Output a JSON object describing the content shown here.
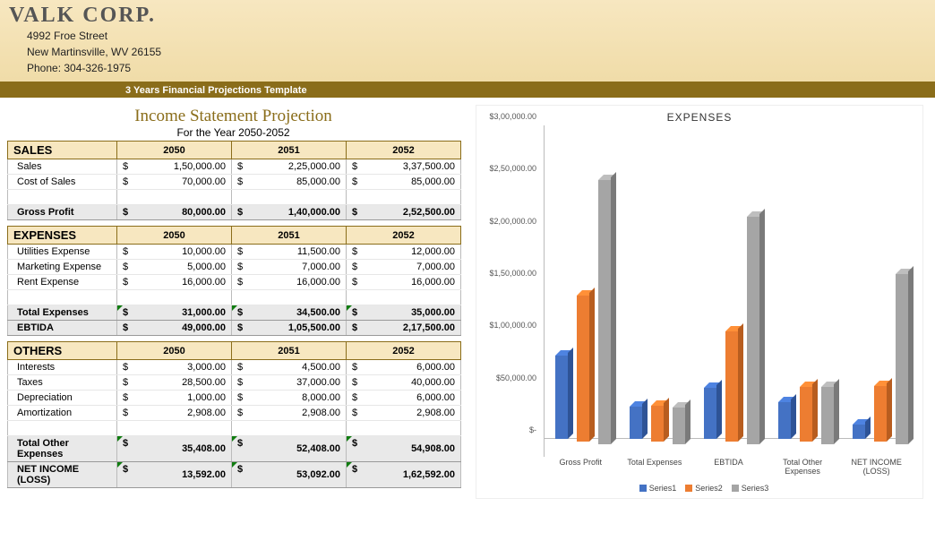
{
  "header": {
    "company": "VALK CORP.",
    "address1": "4992 Froe Street",
    "address2": "New Martinsville, WV 26155",
    "phone": "Phone: 304-326-1975",
    "strip": "3 Years Financial Projections Template"
  },
  "statement": {
    "title": "Income Statement Projection",
    "subtitle": "For the Year 2050-2052",
    "years": [
      "2050",
      "2051",
      "2052"
    ],
    "currency": "$",
    "sections": {
      "sales": {
        "label": "SALES",
        "rows": [
          {
            "label": "Sales",
            "vals": [
              "1,50,000.00",
              "2,25,000.00",
              "3,37,500.00"
            ]
          },
          {
            "label": "Cost of Sales",
            "vals": [
              "70,000.00",
              "85,000.00",
              "85,000.00"
            ]
          }
        ],
        "totals": [
          {
            "label": "Gross Profit",
            "vals": [
              "80,000.00",
              "1,40,000.00",
              "2,52,500.00"
            ]
          }
        ]
      },
      "expenses": {
        "label": "EXPENSES",
        "rows": [
          {
            "label": "Utilities Expense",
            "vals": [
              "10,000.00",
              "11,500.00",
              "12,000.00"
            ]
          },
          {
            "label": "Marketing Expense",
            "vals": [
              "5,000.00",
              "7,000.00",
              "7,000.00"
            ]
          },
          {
            "label": "Rent Expense",
            "vals": [
              "16,000.00",
              "16,000.00",
              "16,000.00"
            ]
          }
        ],
        "totals": [
          {
            "label": "Total Expenses",
            "vals": [
              "31,000.00",
              "34,500.00",
              "35,000.00"
            ],
            "tri": true
          },
          {
            "label": "EBTIDA",
            "vals": [
              "49,000.00",
              "1,05,500.00",
              "2,17,500.00"
            ]
          }
        ]
      },
      "others": {
        "label": "OTHERS",
        "rows": [
          {
            "label": "Interests",
            "vals": [
              "3,000.00",
              "4,500.00",
              "6,000.00"
            ]
          },
          {
            "label": "Taxes",
            "vals": [
              "28,500.00",
              "37,000.00",
              "40,000.00"
            ]
          },
          {
            "label": "Depreciation",
            "vals": [
              "1,000.00",
              "8,000.00",
              "6,000.00"
            ]
          },
          {
            "label": "Amortization",
            "vals": [
              "2,908.00",
              "2,908.00",
              "2,908.00"
            ]
          }
        ],
        "totals": [
          {
            "label": "Total Other Expenses",
            "vals": [
              "35,408.00",
              "52,408.00",
              "54,908.00"
            ],
            "tri": true
          },
          {
            "label": "NET INCOME (LOSS)",
            "vals": [
              "13,592.00",
              "53,092.00",
              "1,62,592.00"
            ],
            "tri": true
          }
        ]
      }
    }
  },
  "chart": {
    "type": "bar3d",
    "title": "EXPENSES",
    "ylim": [
      0,
      300000
    ],
    "ytick_step": 50000,
    "ytick_labels": [
      "$-",
      "$50,000.00",
      "$1,00,000.00",
      "$1,50,000.00",
      "$2,00,000.00",
      "$2,50,000.00",
      "$3,00,000.00"
    ],
    "categories": [
      "Gross Profit",
      "Total Expenses",
      "EBTIDA",
      "Total Other Expenses",
      "NET INCOME (LOSS)"
    ],
    "series": [
      {
        "name": "Series1",
        "color": "#4472c4",
        "dark": "#2e5396",
        "values": [
          80000,
          31000,
          49000,
          35408,
          13592
        ]
      },
      {
        "name": "Series2",
        "color": "#ed7d31",
        "dark": "#b85d1f",
        "values": [
          140000,
          34500,
          105500,
          52408,
          53092
        ]
      },
      {
        "name": "Series3",
        "color": "#a5a5a5",
        "dark": "#7a7a7a",
        "values": [
          252500,
          35000,
          217500,
          54908,
          162592
        ]
      }
    ],
    "background_color": "#ffffff",
    "font_size": 9
  }
}
